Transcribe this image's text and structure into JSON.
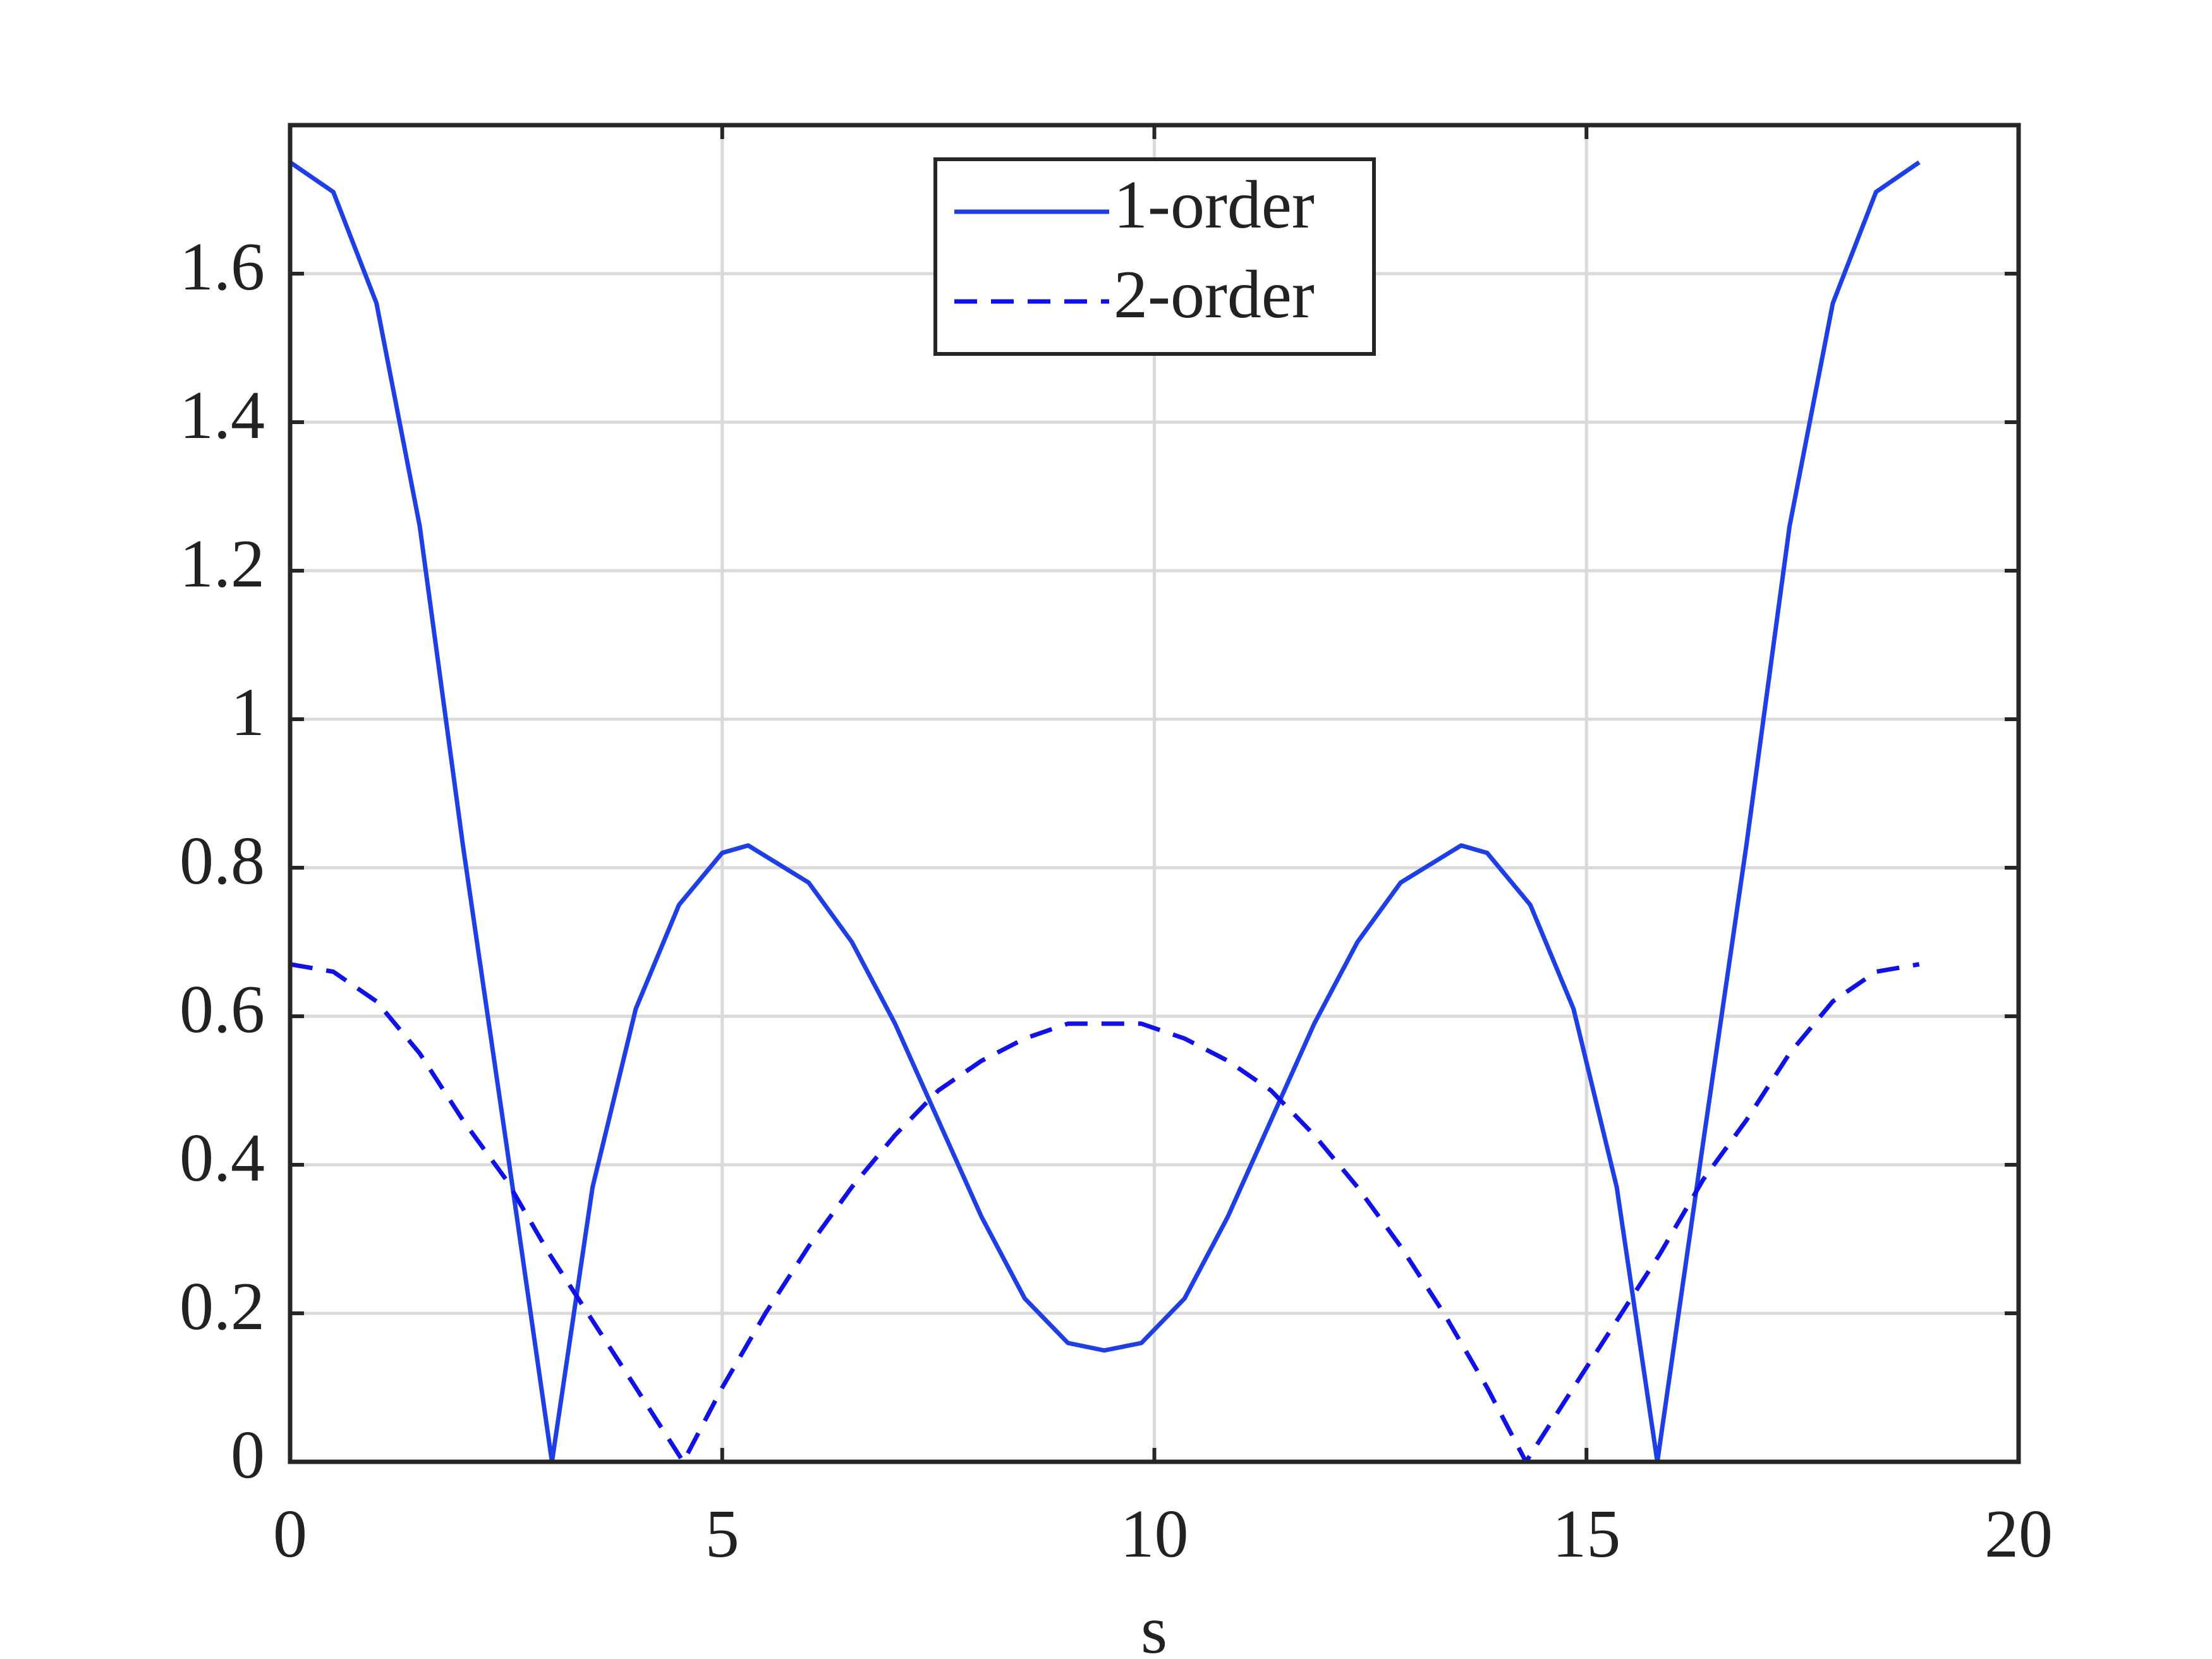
{
  "chart_data": {
    "type": "line",
    "x_label": "s",
    "xlim": [
      0,
      20
    ],
    "xticks": [
      0,
      5,
      10,
      15,
      20
    ],
    "ylim": [
      0,
      1.8
    ],
    "yticks": [
      0,
      0.2,
      0.4,
      0.6,
      0.8,
      1,
      1.2,
      1.4,
      1.6
    ],
    "grid": true,
    "legend": "top",
    "series": [
      {
        "name": "1-order",
        "color": "#1f3fe6",
        "style": "solid",
        "x": [
          0,
          0.5,
          1,
          1.5,
          2,
          2.5,
          3.03,
          3.5,
          4,
          4.5,
          5,
          5.3,
          6,
          6.5,
          7,
          7.5,
          8,
          8.5,
          9,
          9.42,
          9.85,
          10.35,
          10.85,
          11.35,
          11.85,
          12.35,
          12.85,
          13.55,
          13.85,
          14.35,
          14.85,
          15.35,
          15.82,
          16.35,
          16.85,
          17.35,
          17.85,
          18.35,
          18.85
        ],
        "values": [
          1.75,
          1.71,
          1.56,
          1.26,
          0.83,
          0.43,
          0,
          0.37,
          0.61,
          0.75,
          0.82,
          0.83,
          0.78,
          0.7,
          0.59,
          0.46,
          0.33,
          0.22,
          0.16,
          0.15,
          0.16,
          0.22,
          0.33,
          0.46,
          0.59,
          0.7,
          0.78,
          0.83,
          0.82,
          0.75,
          0.61,
          0.37,
          0,
          0.43,
          0.83,
          1.26,
          1.56,
          1.71,
          1.75
        ]
      },
      {
        "name": "2-order",
        "color": "#1010e8",
        "style": "dashed",
        "x": [
          0,
          0.5,
          1,
          1.5,
          2,
          2.5,
          3,
          3.5,
          4,
          4.55,
          5,
          5.5,
          6,
          6.5,
          7,
          7.5,
          8,
          8.5,
          9,
          9.42,
          9.85,
          10.35,
          10.85,
          11.35,
          11.85,
          12.35,
          12.85,
          13.35,
          13.85,
          14.3,
          14.85,
          15.35,
          15.85,
          16.35,
          16.85,
          17.35,
          17.85,
          18.35,
          18.85
        ],
        "values": [
          0.67,
          0.66,
          0.62,
          0.55,
          0.46,
          0.38,
          0.28,
          0.19,
          0.1,
          0,
          0.1,
          0.2,
          0.29,
          0.37,
          0.44,
          0.5,
          0.54,
          0.57,
          0.59,
          0.59,
          0.59,
          0.57,
          0.54,
          0.5,
          0.44,
          0.37,
          0.29,
          0.2,
          0.1,
          0,
          0.1,
          0.19,
          0.28,
          0.38,
          0.46,
          0.55,
          0.62,
          0.66,
          0.67
        ]
      }
    ]
  }
}
